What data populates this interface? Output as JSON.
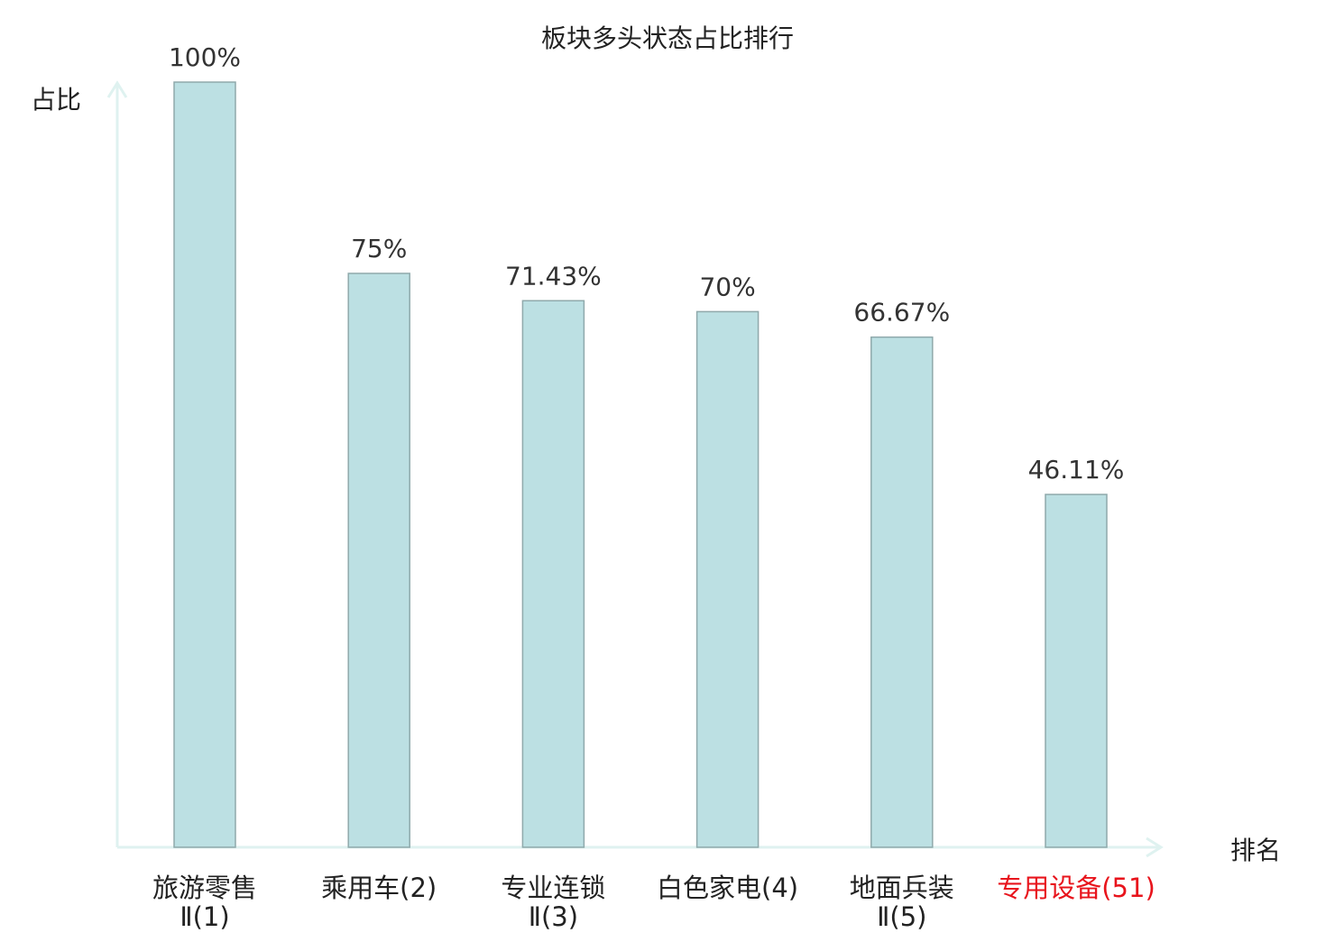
{
  "chart_data": {
    "type": "bar",
    "title": "板块多头状态占比排行",
    "ylabel": "占比",
    "xlabel": "排名",
    "ylim": [
      0,
      100
    ],
    "grid": false,
    "categories": [
      {
        "lines": [
          "旅游零售",
          "Ⅱ(1)"
        ],
        "highlight": false
      },
      {
        "lines": [
          "乘用车(2)"
        ],
        "highlight": false
      },
      {
        "lines": [
          "专业连锁",
          "Ⅱ(3)"
        ],
        "highlight": false
      },
      {
        "lines": [
          "白色家电(4)"
        ],
        "highlight": false
      },
      {
        "lines": [
          "地面兵装",
          "Ⅱ(5)"
        ],
        "highlight": false
      },
      {
        "lines": [
          "专用设备(51)"
        ],
        "highlight": true
      }
    ],
    "values": [
      100,
      75,
      71.43,
      70,
      66.67,
      46.11
    ],
    "data_labels": [
      "100%",
      "75%",
      "71.43%",
      "70%",
      "66.67%",
      "46.11%"
    ],
    "colors": {
      "bar_fill": "#bce0e3",
      "bar_stroke": "#8fa9ab",
      "axis": "#dff2f0",
      "highlight_label": "#e8141c",
      "text": "#222222"
    }
  }
}
